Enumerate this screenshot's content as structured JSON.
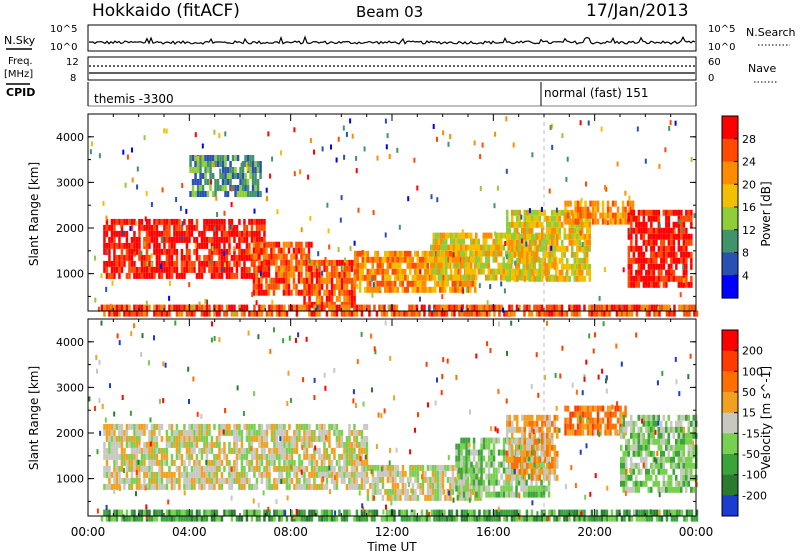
{
  "header": {
    "title": "Hokkaido (fitACF)",
    "beam": "Beam 03",
    "date": "17/Jan/2013"
  },
  "top_panels": {
    "nsky_label": "N.Sky",
    "nsearch_label": "N.Search",
    "log_tick_top": "10^5",
    "log_tick_bottom": "10^0",
    "freq_label": "Freq.",
    "freq_unit": "[MHz]",
    "freq_ticks": [
      "12",
      "8"
    ],
    "nave_label": "Nave",
    "nave_ticks": [
      "60",
      "0"
    ],
    "cpid_label": "CPID",
    "cpid_segments": [
      {
        "name": "themis -3300",
        "start_hour": 0
      },
      {
        "name": "normal (fast) 151",
        "start_hour": 18
      }
    ]
  },
  "chart_data": [
    {
      "type": "heatmap",
      "name": "power-panel",
      "ylabel": "Slant Range [km]",
      "ylim": [
        180,
        4500
      ],
      "yticks": [
        1000,
        2000,
        3000,
        4000
      ],
      "xlim_hours": [
        0,
        24
      ],
      "colorbar": {
        "label": "Power [dB]",
        "ticks": [
          "4",
          "8",
          "12",
          "16",
          "20",
          "24",
          "28"
        ],
        "colors": [
          "#0000ff",
          "#2a50b4",
          "#41946a",
          "#8fce3a",
          "#f2c000",
          "#ff8c00",
          "#ff4a00",
          "#ff0000"
        ]
      },
      "regions": [
        {
          "h0": 0.6,
          "h1": 7.0,
          "r0": 900,
          "r1": 2200,
          "level": 7
        },
        {
          "h0": 6.5,
          "h1": 8.8,
          "r0": 600,
          "r1": 1700,
          "level": 6
        },
        {
          "h0": 8.5,
          "h1": 10.5,
          "r0": 300,
          "r1": 1300,
          "level": 6
        },
        {
          "h0": 10.5,
          "h1": 15.3,
          "r0": 600,
          "r1": 1500,
          "level": 5
        },
        {
          "h0": 13.5,
          "h1": 18.5,
          "r0": 900,
          "r1": 1900,
          "level": 4
        },
        {
          "h0": 16.5,
          "h1": 19.8,
          "r0": 900,
          "r1": 2400,
          "level": 4
        },
        {
          "h0": 18.8,
          "h1": 21.5,
          "r0": 2200,
          "r1": 2600,
          "level": 5
        },
        {
          "h0": 21.3,
          "h1": 23.8,
          "r0": 800,
          "r1": 2400,
          "level": 7
        },
        {
          "h0": 4.0,
          "h1": 6.8,
          "r0": 2800,
          "r1": 3600,
          "level": 2
        },
        {
          "h0": 0.5,
          "h1": 24.0,
          "r0": 180,
          "r1": 320,
          "level": 6
        }
      ]
    },
    {
      "type": "heatmap",
      "name": "velocity-panel",
      "ylabel": "Slant Range [km]",
      "ylim": [
        180,
        4500
      ],
      "yticks": [
        1000,
        2000,
        3000,
        4000
      ],
      "xlim_hours": [
        0,
        24
      ],
      "colorbar": {
        "label": "Velocity [m s^-1]",
        "ticks": [
          "200",
          "100",
          "50",
          "15",
          "-15",
          "-50",
          "-100",
          "-200"
        ],
        "colors": [
          "#1a3ccf",
          "#2a7a32",
          "#3aa43a",
          "#78d050",
          "#c8c8c0",
          "#f2a020",
          "#ff7000",
          "#ff3c00",
          "#ff0000"
        ]
      },
      "regions": [
        {
          "h0": 0.6,
          "h1": 11.0,
          "r0": 800,
          "r1": 2200,
          "level": 4
        },
        {
          "h0": 11.0,
          "h1": 15.5,
          "r0": 600,
          "r1": 1300,
          "level": 4
        },
        {
          "h0": 14.5,
          "h1": 18.2,
          "r0": 700,
          "r1": 1900,
          "level": 3
        },
        {
          "h0": 16.5,
          "h1": 18.5,
          "r0": 1000,
          "r1": 2400,
          "level": 5
        },
        {
          "h0": 18.8,
          "h1": 21.2,
          "r0": 2000,
          "r1": 2600,
          "level": 6
        },
        {
          "h0": 21.0,
          "h1": 24.0,
          "r0": 700,
          "r1": 2400,
          "level": 3
        },
        {
          "h0": 0.5,
          "h1": 24.0,
          "r0": 180,
          "r1": 320,
          "level": 2
        }
      ]
    }
  ],
  "x_axis": {
    "ticks": [
      "00:00",
      "04:00",
      "08:00",
      "12:00",
      "16:00",
      "20:00",
      "00:00"
    ],
    "label": "Time UT"
  }
}
